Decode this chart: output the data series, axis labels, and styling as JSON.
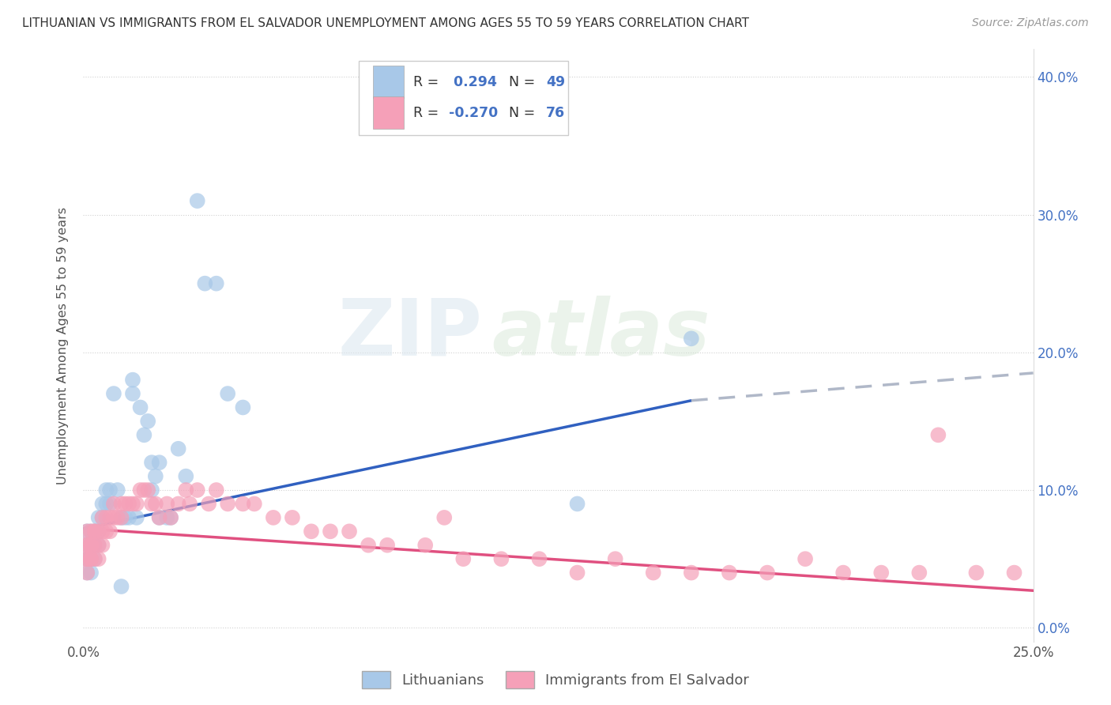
{
  "title": "LITHUANIAN VS IMMIGRANTS FROM EL SALVADOR UNEMPLOYMENT AMONG AGES 55 TO 59 YEARS CORRELATION CHART",
  "source": "Source: ZipAtlas.com",
  "ylabel": "Unemployment Among Ages 55 to 59 years",
  "xlim": [
    0.0,
    0.25
  ],
  "ylim": [
    -0.01,
    0.42
  ],
  "legend_entries": [
    "Lithuanians",
    "Immigrants from El Salvador"
  ],
  "R_lithuanian": 0.294,
  "N_lithuanian": 49,
  "R_el_salvador": -0.27,
  "N_el_salvador": 76,
  "color_lithuanian": "#a8c8e8",
  "color_el_salvador": "#f5a0b8",
  "line_color_lithuanian": "#3060c0",
  "line_color_el_salvador": "#e05080",
  "line_color_dashed": "#b0b8c8",
  "background_color": "#ffffff",
  "watermark_zip": "ZIP",
  "watermark_atlas": "atlas",
  "lith_line_x0": 0.0,
  "lith_line_y0": 0.072,
  "lith_line_x1": 0.16,
  "lith_line_y1": 0.165,
  "lith_line_x2": 0.25,
  "lith_line_y2": 0.185,
  "salv_line_x0": 0.0,
  "salv_line_y0": 0.072,
  "salv_line_x1": 0.25,
  "salv_line_y1": 0.027,
  "lith_scatter_x": [
    0.001,
    0.001,
    0.001,
    0.001,
    0.001,
    0.002,
    0.002,
    0.002,
    0.002,
    0.003,
    0.003,
    0.003,
    0.004,
    0.004,
    0.004,
    0.005,
    0.005,
    0.006,
    0.006,
    0.007,
    0.007,
    0.008,
    0.009,
    0.01,
    0.01,
    0.011,
    0.012,
    0.013,
    0.013,
    0.014,
    0.015,
    0.016,
    0.017,
    0.018,
    0.018,
    0.019,
    0.02,
    0.02,
    0.022,
    0.023,
    0.025,
    0.027,
    0.03,
    0.032,
    0.035,
    0.038,
    0.042,
    0.16,
    0.13
  ],
  "lith_scatter_y": [
    0.05,
    0.04,
    0.06,
    0.07,
    0.05,
    0.05,
    0.06,
    0.07,
    0.04,
    0.06,
    0.07,
    0.05,
    0.08,
    0.07,
    0.06,
    0.09,
    0.08,
    0.09,
    0.1,
    0.1,
    0.09,
    0.17,
    0.1,
    0.08,
    0.03,
    0.08,
    0.08,
    0.17,
    0.18,
    0.08,
    0.16,
    0.14,
    0.15,
    0.1,
    0.12,
    0.11,
    0.12,
    0.08,
    0.08,
    0.08,
    0.13,
    0.11,
    0.31,
    0.25,
    0.25,
    0.17,
    0.16,
    0.21,
    0.09
  ],
  "salv_scatter_x": [
    0.001,
    0.001,
    0.001,
    0.001,
    0.001,
    0.001,
    0.002,
    0.002,
    0.002,
    0.002,
    0.002,
    0.003,
    0.003,
    0.003,
    0.003,
    0.004,
    0.004,
    0.004,
    0.005,
    0.005,
    0.005,
    0.006,
    0.006,
    0.007,
    0.007,
    0.008,
    0.008,
    0.009,
    0.01,
    0.01,
    0.011,
    0.012,
    0.013,
    0.014,
    0.015,
    0.016,
    0.017,
    0.018,
    0.019,
    0.02,
    0.022,
    0.023,
    0.025,
    0.027,
    0.028,
    0.03,
    0.033,
    0.035,
    0.038,
    0.042,
    0.045,
    0.05,
    0.055,
    0.06,
    0.065,
    0.07,
    0.075,
    0.08,
    0.09,
    0.095,
    0.1,
    0.11,
    0.12,
    0.13,
    0.14,
    0.15,
    0.16,
    0.17,
    0.18,
    0.19,
    0.2,
    0.21,
    0.22,
    0.225,
    0.235,
    0.245
  ],
  "salv_scatter_y": [
    0.05,
    0.04,
    0.06,
    0.07,
    0.05,
    0.06,
    0.05,
    0.06,
    0.07,
    0.05,
    0.06,
    0.06,
    0.07,
    0.05,
    0.07,
    0.06,
    0.07,
    0.05,
    0.08,
    0.07,
    0.06,
    0.08,
    0.07,
    0.08,
    0.07,
    0.09,
    0.08,
    0.08,
    0.09,
    0.08,
    0.09,
    0.09,
    0.09,
    0.09,
    0.1,
    0.1,
    0.1,
    0.09,
    0.09,
    0.08,
    0.09,
    0.08,
    0.09,
    0.1,
    0.09,
    0.1,
    0.09,
    0.1,
    0.09,
    0.09,
    0.09,
    0.08,
    0.08,
    0.07,
    0.07,
    0.07,
    0.06,
    0.06,
    0.06,
    0.08,
    0.05,
    0.05,
    0.05,
    0.04,
    0.05,
    0.04,
    0.04,
    0.04,
    0.04,
    0.05,
    0.04,
    0.04,
    0.04,
    0.14,
    0.04,
    0.04
  ]
}
